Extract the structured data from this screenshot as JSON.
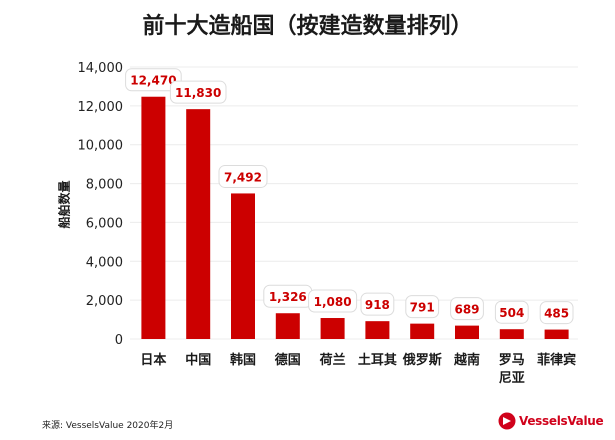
{
  "chart_data": {
    "type": "bar",
    "title": "前十大造船国（按建造数量排列）",
    "ylabel": "船舶数量",
    "xlabel": "",
    "categories": [
      "日本",
      "中国",
      "韩国",
      "德国",
      "荷兰",
      "土耳其",
      "俄罗斯",
      "越南",
      "罗马尼亚",
      "菲律宾"
    ],
    "category_lines": [
      [
        "日本"
      ],
      [
        "中国"
      ],
      [
        "韩国"
      ],
      [
        "德国"
      ],
      [
        "荷兰"
      ],
      [
        "土耳其"
      ],
      [
        "俄罗斯"
      ],
      [
        "越南"
      ],
      [
        "罗马",
        "尼亚"
      ],
      [
        "菲律宾"
      ]
    ],
    "values": [
      12470,
      11830,
      7492,
      1326,
      1080,
      918,
      791,
      689,
      504,
      485
    ],
    "data_labels": [
      "12,470",
      "11,830",
      "7,492",
      "1,326",
      "1,080",
      "918",
      "791",
      "689",
      "504",
      "485"
    ],
    "ylim": [
      0,
      14000
    ],
    "yticks": [
      0,
      2000,
      4000,
      6000,
      8000,
      10000,
      12000,
      14000
    ],
    "ytick_labels": [
      "0",
      "2,000",
      "4,000",
      "6,000",
      "8,000",
      "10,000",
      "12,000",
      "14,000"
    ],
    "grid": true,
    "bar_color": "#cc0000",
    "label_color": "#cc0000"
  },
  "footer": {
    "source": "来源: VesselsValue 2020年2月",
    "logo_text": "VesselsValue"
  }
}
